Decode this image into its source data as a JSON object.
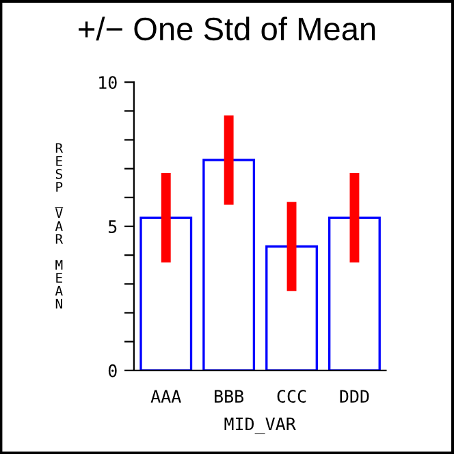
{
  "chart_data": {
    "type": "bar",
    "title": "+/− One Std of Mean",
    "xlabel": "MID_VAR",
    "ylabel": "RESP_VAR MEAN",
    "categories": [
      "AAA",
      "BBB",
      "CCC",
      "DDD"
    ],
    "series": [
      {
        "color": "#0000ff",
        "values": [
          5.3,
          7.3,
          4.3,
          5.3
        ],
        "errors": [
          1.55,
          1.55,
          1.55,
          1.55
        ]
      }
    ],
    "ylim": [
      0,
      10
    ],
    "yticks": [
      0,
      {
        "value": 1,
        "label": null
      },
      {
        "value": 2,
        "label": null
      },
      {
        "value": 3,
        "label": null
      },
      {
        "value": 4,
        "label": null
      },
      5,
      {
        "value": 6,
        "label": null
      },
      {
        "value": 7,
        "label": null
      },
      {
        "value": 8,
        "label": null
      },
      {
        "value": 9,
        "label": null
      },
      10
    ],
    "grid": false,
    "legend": false
  }
}
